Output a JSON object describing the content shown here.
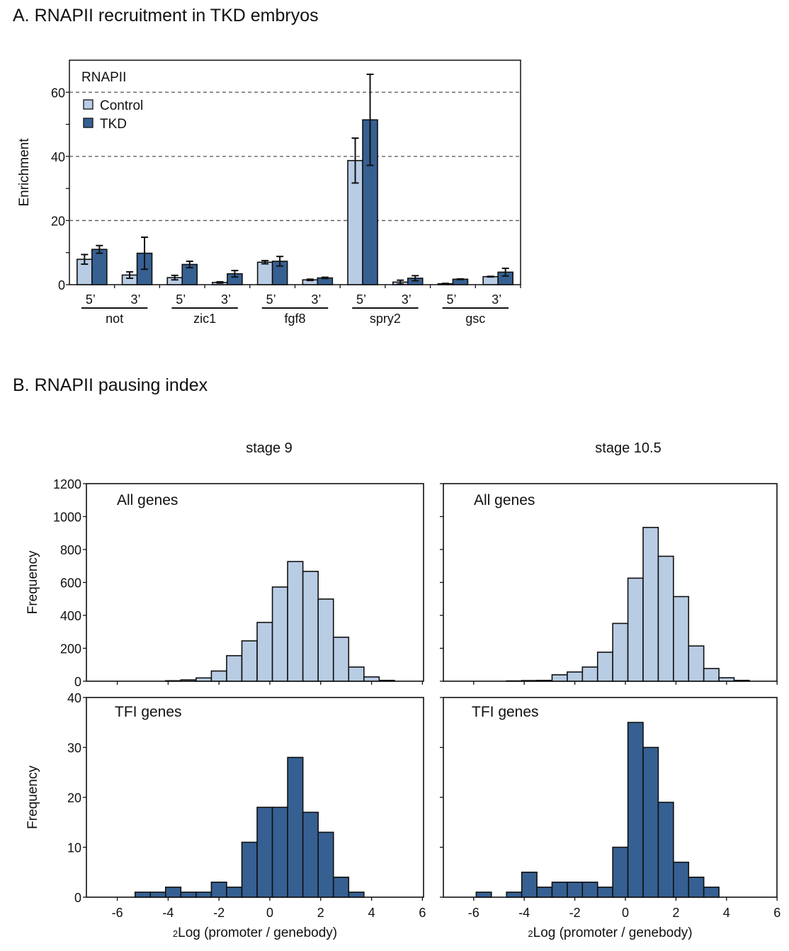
{
  "figure": {
    "panel_a_title": "A.   RNAPII recruitment in TKD embryos",
    "panel_b_title": "B.   RNAPII  pausing index",
    "colors": {
      "control": "#b8cce4",
      "tkd": "#366092",
      "axis": "#111111",
      "grid": "#555555"
    }
  },
  "chart_data": [
    {
      "id": "A",
      "type": "bar",
      "title": "RNAPII recruitment in TKD embryos",
      "inset_label": "RNAPII",
      "xlabel": "",
      "ylabel": "Enrichment",
      "ylim": [
        0,
        70
      ],
      "yticks": [
        0,
        20,
        40,
        60
      ],
      "yminor": [
        10,
        30,
        50
      ],
      "grid": "dashed at 20, 40, 60",
      "legend": {
        "position": "top-left",
        "entries": [
          "Control",
          "TKD"
        ]
      },
      "genes": [
        "not",
        "zic1",
        "fgf8",
        "spry2",
        "gsc"
      ],
      "regions": [
        "5’",
        "3’"
      ],
      "categories": [
        "not 5'",
        "not 3'",
        "zic1 5'",
        "zic1 3'",
        "fgf8 5'",
        "fgf8 3'",
        "spry2 5'",
        "spry2 3'",
        "gsc 5'",
        "gsc 3'"
      ],
      "series": [
        {
          "name": "Control",
          "values": [
            7.9,
            3.0,
            2.2,
            0.7,
            7.0,
            1.5,
            38.7,
            0.8,
            0.3,
            2.5
          ],
          "errors": [
            1.5,
            1.0,
            0.7,
            0.2,
            0.5,
            0.2,
            7.0,
            0.6,
            0.1,
            0.1
          ]
        },
        {
          "name": "TKD",
          "values": [
            11.0,
            9.8,
            6.3,
            3.4,
            7.3,
            2.1,
            51.4,
            2.0,
            1.7,
            3.9
          ],
          "errors": [
            1.2,
            5.0,
            1.0,
            1.0,
            1.5,
            0.2,
            14.2,
            0.8,
            0.1,
            1.2
          ]
        }
      ]
    },
    {
      "id": "B-stage9-all",
      "type": "bar",
      "column_title": "stage 9",
      "inset_label": "All genes",
      "xlabel": "",
      "ylabel": "Frequency",
      "ylim": [
        0,
        1200
      ],
      "yticks": [
        0,
        200,
        400,
        600,
        800,
        1000,
        1200
      ],
      "xlim": [
        -7,
        6.3
      ],
      "bin_start": -4.7,
      "bin_width": 0.6,
      "values": [
        0,
        3,
        8,
        20,
        62,
        155,
        245,
        357,
        572,
        727,
        667,
        499,
        267,
        86,
        26,
        5
      ],
      "color": "control"
    },
    {
      "id": "B-stage10.5-all",
      "type": "bar",
      "column_title": "stage 10.5",
      "inset_label": "All genes",
      "xlabel": "",
      "ylabel": "",
      "ylim": [
        0,
        1200
      ],
      "yticks": [
        0,
        200,
        400,
        600,
        800,
        1000,
        1200
      ],
      "xlim": [
        -7,
        6.3
      ],
      "bin_start": -4.7,
      "bin_width": 0.6,
      "values": [
        2,
        4,
        5,
        39,
        56,
        86,
        176,
        351,
        626,
        934,
        759,
        514,
        214,
        77,
        21,
        5
      ],
      "color": "control"
    },
    {
      "id": "B-stage9-tfi",
      "type": "bar",
      "inset_label": "TFI genes",
      "xlabel": "2Log (promoter / genebody)",
      "ylabel": "Frequency",
      "ylim": [
        0,
        40
      ],
      "yticks": [
        0,
        10,
        20,
        30,
        40
      ],
      "xlim": [
        -7,
        6.3
      ],
      "xticks": [
        -6,
        -4,
        -2,
        0,
        2,
        4,
        6
      ],
      "bin_start": -5.3,
      "bin_width": 0.6,
      "values": [
        1,
        1,
        2,
        1,
        1,
        3,
        2,
        11,
        18,
        18,
        28,
        17,
        13,
        4,
        1
      ],
      "color": "tkd"
    },
    {
      "id": "B-stage10.5-tfi",
      "type": "bar",
      "inset_label": "TFI genes",
      "xlabel": "2Log (promoter / genebody)",
      "ylabel": "",
      "ylim": [
        0,
        40
      ],
      "yticks": [
        0,
        10,
        20,
        30,
        40
      ],
      "xlim": [
        -7,
        6.3
      ],
      "xticks": [
        -6,
        -4,
        -2,
        0,
        2,
        4,
        6
      ],
      "bin_start": -5.9,
      "bin_width": 0.6,
      "values": [
        1,
        0,
        1,
        5,
        2,
        3,
        3,
        3,
        2,
        10,
        35,
        30,
        19,
        7,
        4,
        2
      ],
      "color": "tkd"
    }
  ]
}
